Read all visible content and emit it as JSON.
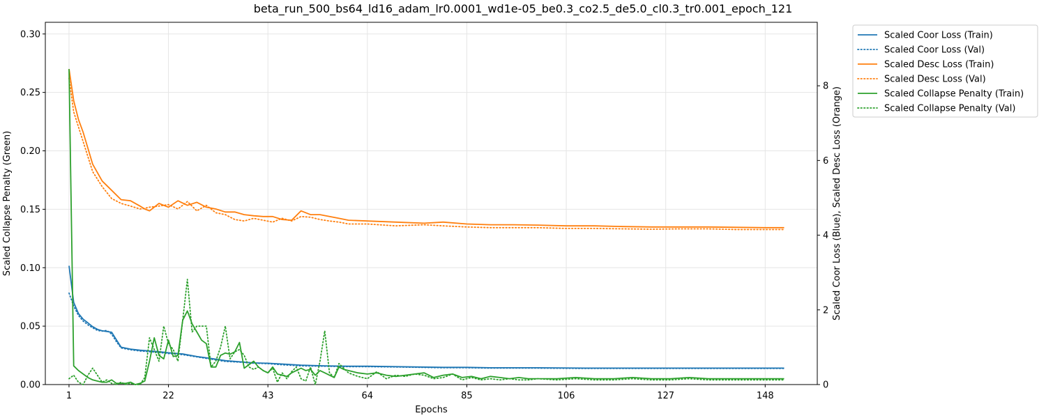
{
  "chart_data": {
    "type": "line",
    "title": "beta_run_500_bs64_ld16_adam_lr0.0001_wd1e-05_be0.3_co2.5_de5.0_cl0.3_tr0.001_epoch_121",
    "xlabel": "Epochs",
    "ylabel_left": "Scaled Collapse Penalty (Green)",
    "ylabel_right": "Scaled Coor Loss (Blue), Scaled Desc Loss (Orange)",
    "xlim": [
      -4,
      159
    ],
    "ylim_left": [
      0,
      0.31
    ],
    "ylim_right": [
      0,
      9.7
    ],
    "xticks": [
      1,
      22,
      43,
      64,
      85,
      106,
      127,
      148
    ],
    "yticks_left": [
      0.0,
      0.05,
      0.1,
      0.15,
      0.2,
      0.25,
      0.3
    ],
    "yticks_left_labels": [
      "0.00",
      "0.05",
      "0.10",
      "0.15",
      "0.20",
      "0.25",
      "0.30"
    ],
    "yticks_right": [
      0,
      2,
      4,
      6,
      8
    ],
    "yticks_right_labels": [
      "0",
      "2",
      "4",
      "6",
      "8"
    ],
    "grid": true,
    "legend_position": "outside-top-right",
    "series": [
      {
        "name": "Scaled Coor Loss (Train)",
        "axis": "right",
        "color": "#1f77b4",
        "dash": "solid",
        "x": [
          1,
          2,
          3,
          4,
          5,
          6,
          7,
          8,
          9,
          10,
          11,
          12,
          14,
          16,
          18,
          20,
          22,
          25,
          28,
          31,
          34,
          37,
          40,
          43,
          46,
          50,
          55,
          60,
          64,
          70,
          75,
          80,
          85,
          90,
          100,
          110,
          120,
          130,
          140,
          152
        ],
        "y": [
          3.18,
          2.2,
          1.9,
          1.75,
          1.65,
          1.55,
          1.48,
          1.44,
          1.42,
          1.4,
          1.2,
          1.0,
          0.95,
          0.92,
          0.9,
          0.88,
          0.85,
          0.82,
          0.75,
          0.7,
          0.64,
          0.61,
          0.58,
          0.57,
          0.55,
          0.52,
          0.5,
          0.49,
          0.49,
          0.48,
          0.47,
          0.46,
          0.46,
          0.45,
          0.45,
          0.44,
          0.44,
          0.44,
          0.44,
          0.44
        ]
      },
      {
        "name": "Scaled Coor Loss (Val)",
        "axis": "right",
        "color": "#1f77b4",
        "dash": "dotted",
        "x": [
          1,
          2,
          3,
          4,
          5,
          6,
          7,
          8,
          9,
          10,
          11,
          12,
          14,
          16,
          18,
          20,
          22,
          25,
          28,
          31,
          34,
          37,
          40,
          43,
          46,
          50,
          55,
          60,
          64,
          70,
          75,
          80,
          85,
          90,
          100,
          110,
          120,
          130,
          140,
          152
        ],
        "y": [
          2.45,
          2.1,
          1.85,
          1.7,
          1.6,
          1.52,
          1.45,
          1.43,
          1.45,
          1.35,
          1.15,
          0.98,
          0.93,
          0.9,
          0.88,
          0.86,
          0.83,
          0.8,
          0.74,
          0.68,
          0.62,
          0.6,
          0.57,
          0.56,
          0.53,
          0.5,
          0.49,
          0.48,
          0.48,
          0.47,
          0.46,
          0.45,
          0.45,
          0.44,
          0.44,
          0.43,
          0.43,
          0.43,
          0.43,
          0.43
        ]
      },
      {
        "name": "Scaled Desc Loss (Train)",
        "axis": "right",
        "color": "#ff7f0e",
        "dash": "solid",
        "x": [
          1,
          2,
          3,
          4,
          6,
          8,
          10,
          12,
          14,
          16,
          17,
          18,
          20,
          22,
          24,
          26,
          28,
          30,
          32,
          34,
          36,
          38,
          40,
          42,
          44,
          46,
          48,
          50,
          52,
          54,
          56,
          58,
          60,
          64,
          70,
          76,
          80,
          85,
          90,
          95,
          100,
          106,
          112,
          118,
          124,
          130,
          136,
          142,
          148,
          152
        ],
        "y": [
          8.45,
          7.6,
          7.1,
          6.75,
          5.9,
          5.45,
          5.2,
          4.95,
          4.92,
          4.78,
          4.7,
          4.65,
          4.85,
          4.75,
          4.92,
          4.8,
          4.88,
          4.75,
          4.7,
          4.62,
          4.62,
          4.55,
          4.52,
          4.5,
          4.5,
          4.42,
          4.4,
          4.65,
          4.55,
          4.55,
          4.5,
          4.45,
          4.4,
          4.38,
          4.35,
          4.32,
          4.35,
          4.3,
          4.28,
          4.28,
          4.27,
          4.25,
          4.25,
          4.23,
          4.22,
          4.22,
          4.22,
          4.21,
          4.2,
          4.2
        ]
      },
      {
        "name": "Scaled Desc Loss (Val)",
        "axis": "right",
        "color": "#ff7f0e",
        "dash": "dotted",
        "x": [
          1,
          2,
          3,
          4,
          6,
          8,
          10,
          12,
          14,
          16,
          17,
          18,
          20,
          22,
          24,
          26,
          28,
          30,
          32,
          34,
          36,
          38,
          40,
          42,
          44,
          46,
          48,
          50,
          52,
          54,
          56,
          58,
          60,
          64,
          70,
          76,
          80,
          85,
          90,
          95,
          100,
          106,
          112,
          118,
          124,
          130,
          136,
          142,
          148,
          152
        ],
        "y": [
          8.2,
          7.3,
          6.9,
          6.5,
          5.7,
          5.3,
          4.98,
          4.85,
          4.78,
          4.7,
          4.72,
          4.75,
          4.78,
          4.82,
          4.7,
          4.9,
          4.65,
          4.8,
          4.6,
          4.55,
          4.42,
          4.38,
          4.45,
          4.4,
          4.35,
          4.45,
          4.38,
          4.5,
          4.48,
          4.42,
          4.38,
          4.35,
          4.3,
          4.3,
          4.25,
          4.28,
          4.25,
          4.22,
          4.2,
          4.2,
          4.2,
          4.18,
          4.18,
          4.17,
          4.16,
          4.17,
          4.17,
          4.15,
          4.15,
          4.15
        ]
      },
      {
        "name": "Scaled Collapse Penalty (Train)",
        "axis": "left",
        "color": "#2ca02c",
        "dash": "solid",
        "x": [
          1,
          2,
          3,
          4,
          5,
          6,
          7,
          8,
          9,
          10,
          11,
          12,
          13,
          14,
          15,
          16,
          17,
          18,
          19,
          20,
          21,
          22,
          23,
          24,
          25,
          26,
          27,
          28,
          29,
          30,
          31,
          32,
          33,
          34,
          35,
          36,
          37,
          38,
          39,
          40,
          41,
          42,
          43,
          44,
          45,
          46,
          47,
          48,
          49,
          50,
          51,
          52,
          53,
          54,
          55,
          56,
          57,
          58,
          59,
          60,
          62,
          64,
          66,
          68,
          70,
          72,
          74,
          76,
          78,
          80,
          82,
          84,
          86,
          88,
          90,
          92,
          94,
          96,
          98,
          100,
          104,
          108,
          112,
          116,
          120,
          124,
          128,
          132,
          136,
          140,
          144,
          148,
          152
        ],
        "y": [
          0.27,
          0.016,
          0.012,
          0.009,
          0.006,
          0.004,
          0.003,
          0.002,
          0.002,
          0.004,
          0.001,
          0.001,
          0.001,
          0.002,
          0.0,
          0.001,
          0.003,
          0.02,
          0.04,
          0.025,
          0.022,
          0.038,
          0.024,
          0.025,
          0.055,
          0.063,
          0.052,
          0.045,
          0.038,
          0.035,
          0.015,
          0.015,
          0.025,
          0.027,
          0.026,
          0.028,
          0.036,
          0.014,
          0.017,
          0.02,
          0.015,
          0.012,
          0.01,
          0.015,
          0.009,
          0.008,
          0.007,
          0.01,
          0.012,
          0.014,
          0.012,
          0.013,
          0.008,
          0.012,
          0.01,
          0.008,
          0.006,
          0.015,
          0.013,
          0.012,
          0.01,
          0.009,
          0.01,
          0.008,
          0.007,
          0.008,
          0.009,
          0.01,
          0.006,
          0.008,
          0.009,
          0.006,
          0.007,
          0.005,
          0.007,
          0.006,
          0.005,
          0.006,
          0.005,
          0.005,
          0.005,
          0.006,
          0.005,
          0.005,
          0.006,
          0.005,
          0.005,
          0.006,
          0.005,
          0.005,
          0.005,
          0.005,
          0.005
        ]
      },
      {
        "name": "Scaled Collapse Penalty (Val)",
        "axis": "left",
        "color": "#2ca02c",
        "dash": "dotted",
        "x": [
          1,
          2,
          3,
          4,
          5,
          6,
          7,
          8,
          9,
          10,
          11,
          12,
          13,
          14,
          15,
          16,
          17,
          18,
          19,
          20,
          21,
          22,
          23,
          24,
          25,
          26,
          27,
          28,
          29,
          30,
          31,
          32,
          33,
          34,
          35,
          36,
          37,
          38,
          39,
          40,
          41,
          42,
          43,
          44,
          45,
          46,
          47,
          48,
          49,
          50,
          51,
          52,
          53,
          54,
          55,
          56,
          57,
          58,
          59,
          60,
          62,
          64,
          66,
          68,
          70,
          72,
          74,
          76,
          78,
          80,
          82,
          84,
          86,
          88,
          90,
          92,
          94,
          96,
          98,
          100,
          104,
          108,
          112,
          116,
          120,
          124,
          128,
          132,
          136,
          140,
          144,
          148,
          152
        ],
        "y": [
          0.005,
          0.008,
          0.002,
          0.0,
          0.008,
          0.014,
          0.008,
          0.002,
          0.004,
          0.001,
          0.0,
          0.002,
          0.0,
          0.001,
          0.0,
          0.0,
          0.006,
          0.04,
          0.03,
          0.02,
          0.05,
          0.035,
          0.03,
          0.02,
          0.055,
          0.09,
          0.045,
          0.05,
          0.05,
          0.05,
          0.015,
          0.02,
          0.032,
          0.05,
          0.022,
          0.028,
          0.03,
          0.025,
          0.015,
          0.013,
          0.015,
          0.012,
          0.01,
          0.014,
          0.002,
          0.01,
          0.005,
          0.011,
          0.015,
          0.005,
          0.003,
          0.015,
          0.0,
          0.02,
          0.046,
          0.01,
          0.006,
          0.018,
          0.014,
          0.01,
          0.007,
          0.005,
          0.011,
          0.005,
          0.008,
          0.007,
          0.009,
          0.008,
          0.005,
          0.006,
          0.009,
          0.004,
          0.006,
          0.004,
          0.005,
          0.004,
          0.005,
          0.004,
          0.004,
          0.005,
          0.004,
          0.005,
          0.004,
          0.004,
          0.005,
          0.004,
          0.004,
          0.005,
          0.004,
          0.004,
          0.004,
          0.004,
          0.004
        ]
      }
    ]
  }
}
